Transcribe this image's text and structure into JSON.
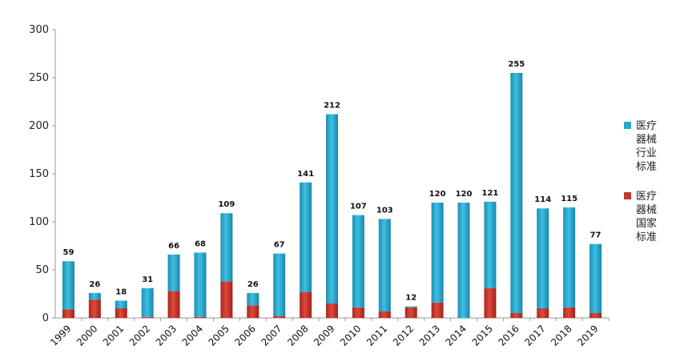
{
  "chart_data": {
    "type": "bar",
    "stacked": true,
    "title": "",
    "xlabel": "",
    "ylabel": "",
    "ylim": [
      0,
      300
    ],
    "yticks": [
      0,
      50,
      100,
      150,
      200,
      250,
      300
    ],
    "grid": false,
    "legend_position": "right",
    "categories": [
      "1999",
      "2000",
      "2001",
      "2002",
      "2003",
      "2004",
      "2005",
      "2006",
      "2007",
      "2008",
      "2009",
      "2010",
      "2011",
      "2012",
      "2013",
      "2014",
      "2015",
      "2016",
      "2017",
      "2018",
      "2019"
    ],
    "series": [
      {
        "name": "医疗\n器械\n国家\n标准",
        "color": "#c0392b",
        "values": [
          9,
          19,
          10,
          1,
          28,
          1,
          38,
          13,
          2,
          27,
          15,
          11,
          7,
          11,
          16,
          0,
          31,
          5,
          10,
          11,
          5
        ]
      },
      {
        "name": "医疗\n器械\n行业\n标准",
        "color": "#2aa7c9",
        "values": [
          50,
          7,
          8,
          30,
          38,
          67,
          71,
          13,
          65,
          114,
          197,
          96,
          96,
          1,
          104,
          120,
          90,
          250,
          104,
          104,
          72
        ]
      }
    ],
    "totals": [
      59,
      26,
      18,
      31,
      66,
      68,
      109,
      26,
      67,
      141,
      212,
      107,
      103,
      12,
      120,
      120,
      121,
      255,
      114,
      115,
      77
    ]
  }
}
